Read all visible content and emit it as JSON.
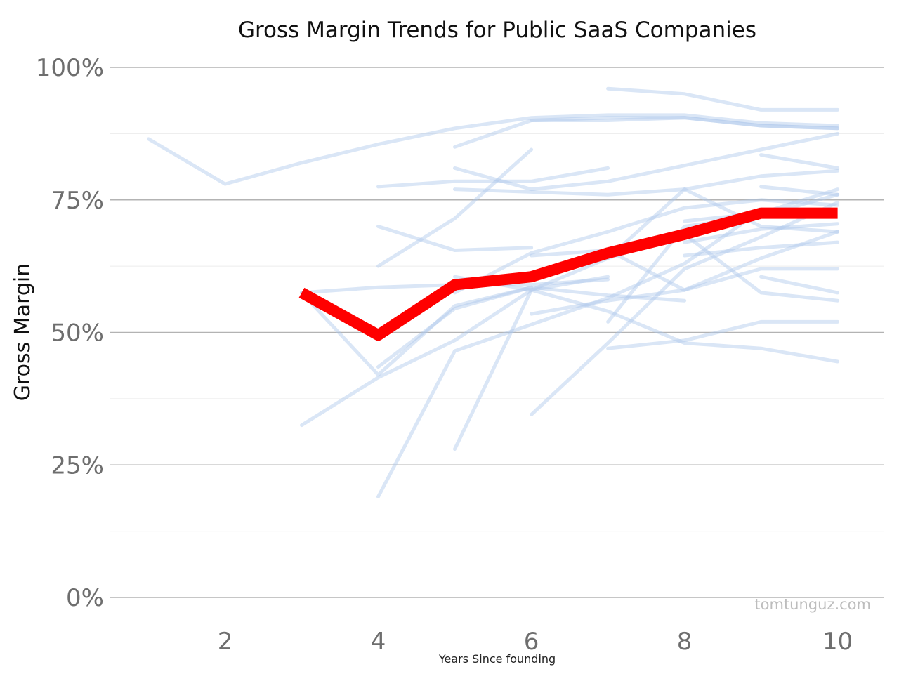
{
  "chart_data": {
    "type": "line",
    "title": "Gross Margin Trends for Public SaaS Companies",
    "xlabel": "Years Since founding",
    "ylabel": "Gross Margin",
    "xlim": [
      0.5,
      10.6
    ],
    "ylim": [
      0,
      100
    ],
    "x_ticks": [
      2,
      4,
      6,
      8,
      10
    ],
    "y_ticks": [
      0,
      25,
      50,
      75,
      100
    ],
    "y_tick_labels": [
      "0%",
      "25%",
      "50%",
      "75%",
      "100%"
    ],
    "grid": true,
    "legend": "none",
    "watermark": "tomtunguz.com",
    "colors": {
      "company": "#aec8ea",
      "median": "#ff0000",
      "grid": "#b3b3b3"
    },
    "series": [
      {
        "x": [
          1,
          2,
          3,
          4,
          5,
          6,
          7,
          8,
          9,
          10
        ],
        "values": [
          86.5,
          78,
          82,
          85.5,
          88.5,
          90.5,
          91,
          91,
          89.5,
          89
        ]
      },
      {
        "x": [
          7,
          8,
          9,
          10
        ],
        "values": [
          96,
          95,
          92,
          92
        ]
      },
      {
        "x": [
          6,
          7,
          8,
          9,
          10
        ],
        "values": [
          90,
          90,
          90.5,
          89,
          88.5
        ]
      },
      {
        "x": [
          5,
          6,
          7,
          8,
          9,
          10
        ],
        "values": [
          85,
          90,
          90.5,
          90.5,
          89,
          88.5
        ]
      },
      {
        "x": [
          4,
          5,
          6,
          7
        ],
        "values": [
          77.5,
          78.5,
          78.5,
          81
        ]
      },
      {
        "x": [
          5,
          6,
          7,
          8,
          9,
          10
        ],
        "values": [
          81,
          77,
          78.5,
          81.5,
          84.5,
          87.5
        ]
      },
      {
        "x": [
          5,
          6,
          7,
          8,
          9,
          10
        ],
        "values": [
          77,
          76.5,
          76,
          77,
          79.5,
          80.5
        ]
      },
      {
        "x": [
          9,
          10
        ],
        "values": [
          83.5,
          81
        ]
      },
      {
        "x": [
          9,
          10
        ],
        "values": [
          77.5,
          76
        ]
      },
      {
        "x": [
          3,
          4,
          5,
          6
        ],
        "values": [
          57.5,
          42,
          55,
          58.5
        ]
      },
      {
        "x": [
          3,
          4,
          5,
          6,
          7
        ],
        "values": [
          57.5,
          58.5,
          59,
          59,
          60
        ]
      },
      {
        "x": [
          4,
          5,
          6
        ],
        "values": [
          70,
          65.5,
          66
        ]
      },
      {
        "x": [
          4,
          5,
          6
        ],
        "values": [
          62.5,
          71.5,
          84.5
        ]
      },
      {
        "x": [
          3,
          4,
          5,
          6,
          7
        ],
        "values": [
          32.5,
          41.5,
          48.5,
          58,
          60.5
        ]
      },
      {
        "x": [
          4,
          5,
          6,
          7,
          8
        ],
        "values": [
          43.5,
          54.5,
          58.5,
          57,
          56
        ]
      },
      {
        "x": [
          4,
          5,
          6,
          7,
          8,
          9
        ],
        "values": [
          19,
          46.5,
          51.5,
          56.5,
          63,
          73
        ]
      },
      {
        "x": [
          5,
          6,
          7,
          8,
          9,
          10
        ],
        "values": [
          28,
          58,
          64,
          77,
          70,
          69
        ]
      },
      {
        "x": [
          6,
          7,
          8,
          9,
          10
        ],
        "values": [
          34.5,
          48,
          62,
          68,
          74.5
        ]
      },
      {
        "x": [
          7,
          8,
          9,
          10
        ],
        "values": [
          52,
          70,
          72,
          76
        ]
      },
      {
        "x": [
          6,
          7,
          8,
          9,
          10
        ],
        "values": [
          53.5,
          56,
          58,
          62,
          62
        ]
      },
      {
        "x": [
          7,
          8,
          9,
          10
        ],
        "values": [
          47,
          48.5,
          52,
          52
        ]
      },
      {
        "x": [
          5,
          6,
          7,
          8,
          9,
          10
        ],
        "values": [
          60.5,
          58,
          54,
          48,
          47,
          44.5
        ]
      },
      {
        "x": [
          6,
          7,
          8,
          9,
          10
        ],
        "values": [
          64.5,
          65.5,
          58,
          64,
          69
        ]
      },
      {
        "x": [
          5,
          6,
          7,
          8,
          9,
          10
        ],
        "values": [
          57.5,
          65,
          69,
          73.5,
          75,
          74
        ]
      },
      {
        "x": [
          8,
          9,
          10
        ],
        "values": [
          67,
          69.5,
          70.5
        ]
      },
      {
        "x": [
          8,
          9,
          10
        ],
        "values": [
          64.5,
          66,
          67
        ]
      },
      {
        "x": [
          9,
          10
        ],
        "values": [
          60.5,
          57.5
        ]
      },
      {
        "x": [
          7,
          8,
          9,
          10
        ],
        "values": [
          64,
          68.5,
          57.5,
          56
        ]
      },
      {
        "x": [
          8,
          9,
          10
        ],
        "values": [
          71,
          72.5,
          77
        ]
      }
    ],
    "highlight": {
      "x": [
        3,
        4,
        5,
        6,
        7,
        8,
        9,
        10
      ],
      "values": [
        57.5,
        49.5,
        59,
        60.5,
        65,
        68.5,
        72.5,
        72.5
      ]
    }
  }
}
